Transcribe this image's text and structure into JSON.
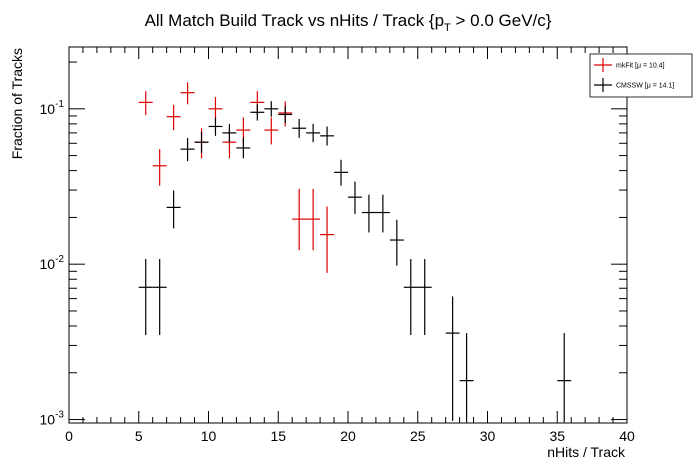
{
  "chart_data": {
    "type": "scatter",
    "title": {
      "main": "All Match Build Track vs nHits / Track {p",
      "sub": "T",
      "tail": " > 0.0 GeV/c}"
    },
    "xlabel": "nHits / Track",
    "ylabel": "Fraction of Tracks",
    "xlim": [
      0,
      40
    ],
    "ylim": [
      0.00095,
      0.25
    ],
    "ylog": true,
    "grid": false,
    "legend_position": "top-right",
    "x_ticks": [
      0,
      5,
      10,
      15,
      20,
      25,
      30,
      35,
      40
    ],
    "x_tick_labels": [
      "0",
      "5",
      "10",
      "15",
      "20",
      "25",
      "30",
      "35",
      "40"
    ],
    "y_ticks": [
      0.001,
      0.01,
      0.1
    ],
    "y_tick_labels": [
      {
        "base": "10",
        "exp": "-3"
      },
      {
        "base": "10",
        "exp": "-2"
      },
      {
        "base": "10",
        "exp": "-1"
      }
    ],
    "series": [
      {
        "name": "mkFit",
        "stat": "[μ = 10.4]",
        "color": "#dd0000",
        "points": [
          {
            "x": 5.5,
            "y": 0.11,
            "lo": 0.091,
            "hi": 0.13
          },
          {
            "x": 6.5,
            "y": 0.043,
            "lo": 0.032,
            "hi": 0.055
          },
          {
            "x": 7.5,
            "y": 0.089,
            "lo": 0.073,
            "hi": 0.106
          },
          {
            "x": 8.5,
            "y": 0.127,
            "lo": 0.107,
            "hi": 0.148
          },
          {
            "x": 9.5,
            "y": 0.061,
            "lo": 0.048,
            "hi": 0.075
          },
          {
            "x": 10.5,
            "y": 0.1,
            "lo": 0.083,
            "hi": 0.119
          },
          {
            "x": 11.5,
            "y": 0.061,
            "lo": 0.048,
            "hi": 0.075
          },
          {
            "x": 12.5,
            "y": 0.073,
            "lo": 0.059,
            "hi": 0.088
          },
          {
            "x": 13.5,
            "y": 0.11,
            "lo": 0.091,
            "hi": 0.13
          },
          {
            "x": 14.5,
            "y": 0.073,
            "lo": 0.059,
            "hi": 0.088
          },
          {
            "x": 15.5,
            "y": 0.094,
            "lo": 0.077,
            "hi": 0.112
          },
          {
            "x": 16.5,
            "y": 0.0195,
            "lo": 0.0123,
            "hi": 0.0305
          },
          {
            "x": 17.5,
            "y": 0.0195,
            "lo": 0.0123,
            "hi": 0.0305
          },
          {
            "x": 18.5,
            "y": 0.0155,
            "lo": 0.0088,
            "hi": 0.0235
          }
        ]
      },
      {
        "name": "CMSSW",
        "stat": "[μ = 14.1]",
        "color": "#000000",
        "points": [
          {
            "x": 5.5,
            "y": 0.0071,
            "lo": 0.0035,
            "hi": 0.0108
          },
          {
            "x": 6.5,
            "y": 0.0071,
            "lo": 0.0035,
            "hi": 0.0108
          },
          {
            "x": 7.5,
            "y": 0.0232,
            "lo": 0.017,
            "hi": 0.0298
          },
          {
            "x": 8.5,
            "y": 0.055,
            "lo": 0.046,
            "hi": 0.065
          },
          {
            "x": 9.5,
            "y": 0.061,
            "lo": 0.052,
            "hi": 0.071
          },
          {
            "x": 10.5,
            "y": 0.077,
            "lo": 0.067,
            "hi": 0.088
          },
          {
            "x": 11.5,
            "y": 0.07,
            "lo": 0.061,
            "hi": 0.08
          },
          {
            "x": 12.5,
            "y": 0.056,
            "lo": 0.048,
            "hi": 0.065
          },
          {
            "x": 13.5,
            "y": 0.095,
            "lo": 0.084,
            "hi": 0.107
          },
          {
            "x": 14.5,
            "y": 0.1,
            "lo": 0.089,
            "hi": 0.112
          },
          {
            "x": 15.5,
            "y": 0.092,
            "lo": 0.081,
            "hi": 0.104
          },
          {
            "x": 16.5,
            "y": 0.075,
            "lo": 0.065,
            "hi": 0.086
          },
          {
            "x": 17.5,
            "y": 0.07,
            "lo": 0.061,
            "hi": 0.08
          },
          {
            "x": 18.5,
            "y": 0.067,
            "lo": 0.058,
            "hi": 0.077
          },
          {
            "x": 19.5,
            "y": 0.039,
            "lo": 0.032,
            "hi": 0.047
          },
          {
            "x": 20.5,
            "y": 0.027,
            "lo": 0.021,
            "hi": 0.034
          },
          {
            "x": 21.5,
            "y": 0.0215,
            "lo": 0.016,
            "hi": 0.028
          },
          {
            "x": 22.5,
            "y": 0.0215,
            "lo": 0.016,
            "hi": 0.028
          },
          {
            "x": 23.5,
            "y": 0.0143,
            "lo": 0.0098,
            "hi": 0.0193
          },
          {
            "x": 24.5,
            "y": 0.0071,
            "lo": 0.0035,
            "hi": 0.0108
          },
          {
            "x": 25.5,
            "y": 0.0071,
            "lo": 0.0035,
            "hi": 0.0108
          },
          {
            "x": 27.5,
            "y": 0.0036,
            "lo": 0.00098,
            "hi": 0.0062
          },
          {
            "x": 28.5,
            "y": 0.00178,
            "lo": 0.00096,
            "hi": 0.0036
          },
          {
            "x": 35.5,
            "y": 0.00178,
            "lo": 0.00096,
            "hi": 0.0036
          }
        ]
      }
    ]
  }
}
